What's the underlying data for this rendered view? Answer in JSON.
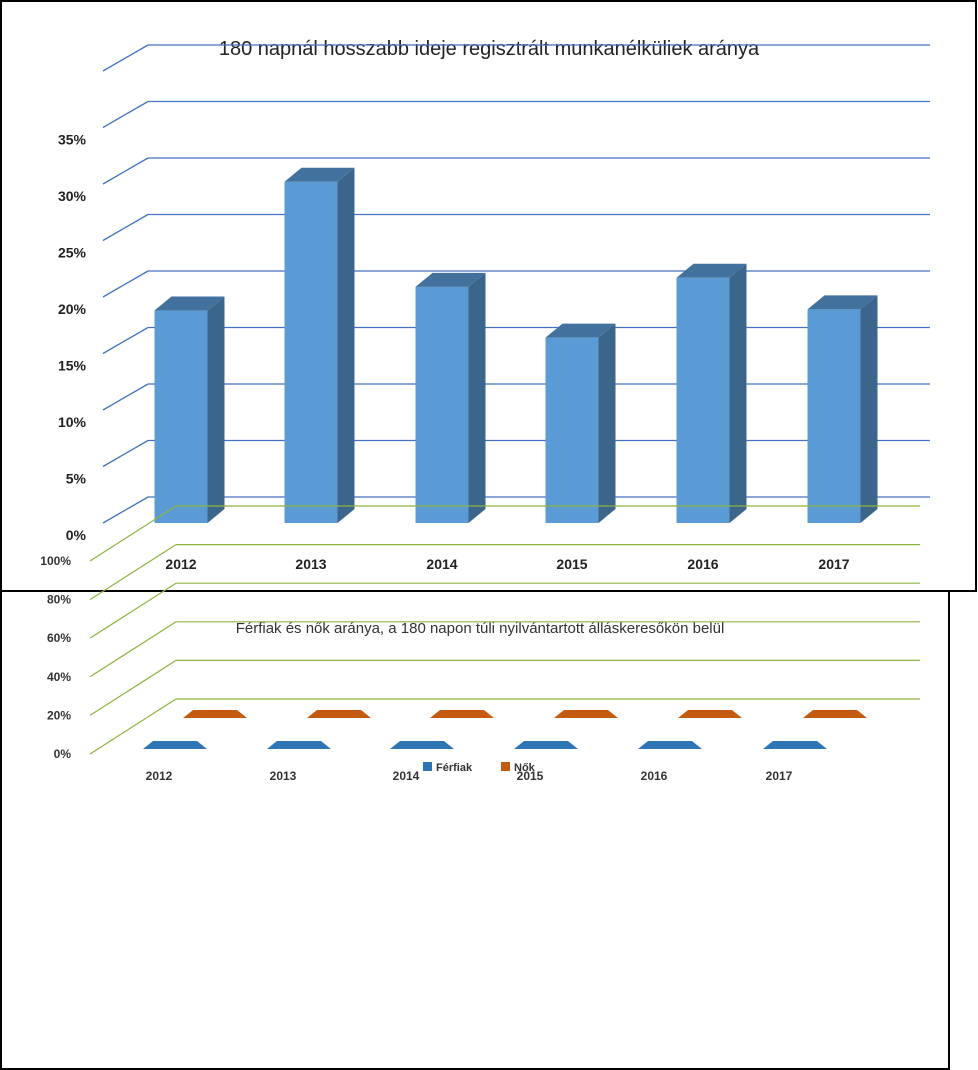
{
  "chart_data": [
    {
      "type": "bar",
      "title": "180 napnál hosszabb ideje regisztrált munkanélküliek aránya",
      "categories": [
        "2012",
        "2013",
        "2014",
        "2015",
        "2016",
        "2017"
      ],
      "values": [
        18.8,
        30.2,
        20.9,
        16.4,
        21.7,
        18.9
      ],
      "yticks": [
        "0%",
        "5%",
        "10%",
        "15%",
        "20%",
        "25%",
        "30%",
        "35%"
      ],
      "ylim": [
        0,
        35
      ],
      "grid": true,
      "colors": {
        "bar_front": "#5B9BD5",
        "bar_side": "#3C658B",
        "bar_top": "#41719C",
        "grid": "#4472C4"
      }
    },
    {
      "type": "bar",
      "title": "Férfiak és nők aránya, a 180 napon túli nyilvántartott álláskeresőkön belül",
      "categories": [
        "2012",
        "2013",
        "2014",
        "2015",
        "2016",
        "2017"
      ],
      "series": [
        {
          "name": "Férfiak",
          "values": [
            0,
            0,
            0,
            0,
            0,
            0
          ],
          "color": "#2E75B6"
        },
        {
          "name": "Nők",
          "values": [
            0,
            0,
            0,
            0,
            0,
            0
          ],
          "color": "#C55A11"
        }
      ],
      "yticks": [
        "0%",
        "20%",
        "40%",
        "60%",
        "80%",
        "100%"
      ],
      "ylim": [
        0,
        100
      ],
      "grid": true,
      "legend": "bottom",
      "colors": {
        "grid": "#8DB33F"
      }
    }
  ]
}
